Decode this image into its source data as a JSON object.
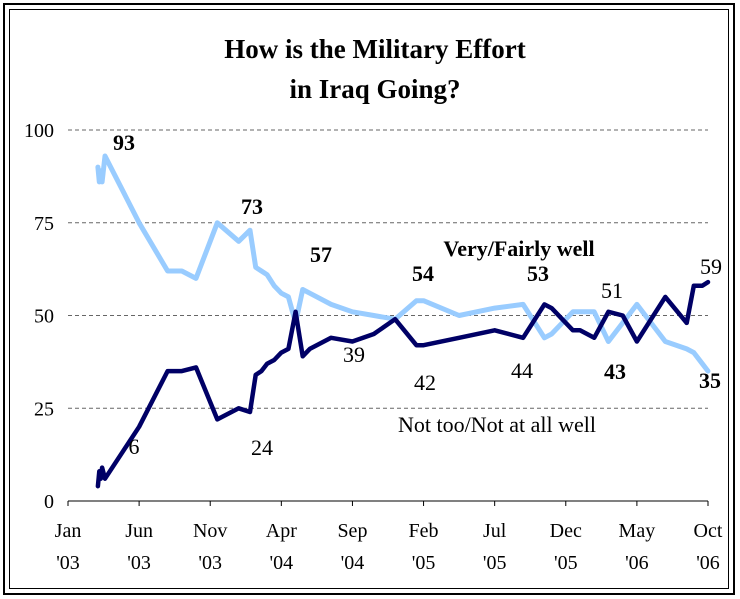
{
  "chart_data": {
    "type": "line",
    "title_lines": [
      "How is the Military Effort",
      "in Iraq Going?"
    ],
    "ylim": [
      0,
      100
    ],
    "y_ticks": [
      0,
      25,
      50,
      75,
      100
    ],
    "x_ticks": [
      {
        "top": "Jan",
        "bottom": "'03"
      },
      {
        "top": "Jun",
        "bottom": "'03"
      },
      {
        "top": "Nov",
        "bottom": "'03"
      },
      {
        "top": "Apr",
        "bottom": "'04"
      },
      {
        "top": "Sep",
        "bottom": "'04"
      },
      {
        "top": "Feb",
        "bottom": "'05"
      },
      {
        "top": "Jul",
        "bottom": "'05"
      },
      {
        "top": "Dec",
        "bottom": "'05"
      },
      {
        "top": "May",
        "bottom": "'06"
      },
      {
        "top": "Oct",
        "bottom": "'06"
      }
    ],
    "grid": "dashed horizontal",
    "series": [
      {
        "label": "Very/Fairly well",
        "color": "#99ccff",
        "x": [
          2.1,
          2.2,
          2.3,
          2.4,
          2.6,
          5.0,
          7.0,
          8.0,
          9.0,
          10.5,
          12.0,
          12.8,
          13.2,
          13.6,
          14.0,
          14.5,
          15.0,
          15.5,
          16.0,
          16.5,
          17.0,
          18.5,
          20.0,
          21.5,
          23.0,
          24.5,
          25.0,
          27.5,
          30.0,
          32.0,
          33.5,
          34.0,
          35.5,
          36.0,
          37.0,
          38.0,
          39.0,
          40.0,
          42.0,
          43.5,
          44.0,
          44.6,
          45.0
        ],
        "y": [
          90,
          86,
          89,
          86,
          93,
          75,
          62,
          62,
          60,
          75,
          70,
          73,
          63,
          62,
          61,
          58,
          56,
          55,
          48,
          57,
          56,
          53,
          51,
          50,
          49,
          54,
          54,
          50,
          52,
          53,
          44,
          45,
          51,
          51,
          51,
          43,
          48,
          53,
          43,
          41,
          40,
          37,
          35
        ]
      },
      {
        "label": "Not too/Not at all well",
        "color": "#000066",
        "x": [
          2.1,
          2.2,
          2.3,
          2.4,
          2.6,
          5.0,
          7.0,
          8.0,
          9.0,
          10.5,
          12.0,
          12.8,
          13.2,
          13.6,
          14.0,
          14.5,
          15.0,
          15.5,
          16.0,
          16.5,
          17.0,
          18.5,
          20.0,
          21.5,
          23.0,
          24.5,
          25.0,
          27.5,
          30.0,
          32.0,
          33.5,
          34.0,
          35.5,
          36.0,
          37.0,
          38.0,
          39.0,
          40.0,
          42.0,
          43.5,
          44.0,
          44.6,
          45.0
        ],
        "y": [
          4,
          8,
          6,
          9,
          6,
          20,
          35,
          35,
          36,
          22,
          25,
          24,
          34,
          35,
          37,
          38,
          40,
          41,
          51,
          39,
          41,
          44,
          43,
          45,
          49,
          42,
          42,
          44,
          46,
          44,
          53,
          52,
          46,
          46,
          44,
          51,
          50,
          43,
          55,
          48,
          58,
          58,
          59
        ]
      }
    ],
    "annotations": [
      {
        "text": "93",
        "bold": true
      },
      {
        "text": "6",
        "bold": false
      },
      {
        "text": "73",
        "bold": true
      },
      {
        "text": "24",
        "bold": false
      },
      {
        "text": "57",
        "bold": true
      },
      {
        "text": "39",
        "bold": false
      },
      {
        "text": "Very/Fairly well",
        "bold": true
      },
      {
        "text": "54",
        "bold": true
      },
      {
        "text": "42",
        "bold": false
      },
      {
        "text": "53",
        "bold": true
      },
      {
        "text": "44",
        "bold": false
      },
      {
        "text": "51",
        "bold": false
      },
      {
        "text": "43",
        "bold": true
      },
      {
        "text": "59",
        "bold": false
      },
      {
        "text": "35",
        "bold": true
      },
      {
        "text": "Not too/Not at all well",
        "bold": false
      }
    ]
  }
}
